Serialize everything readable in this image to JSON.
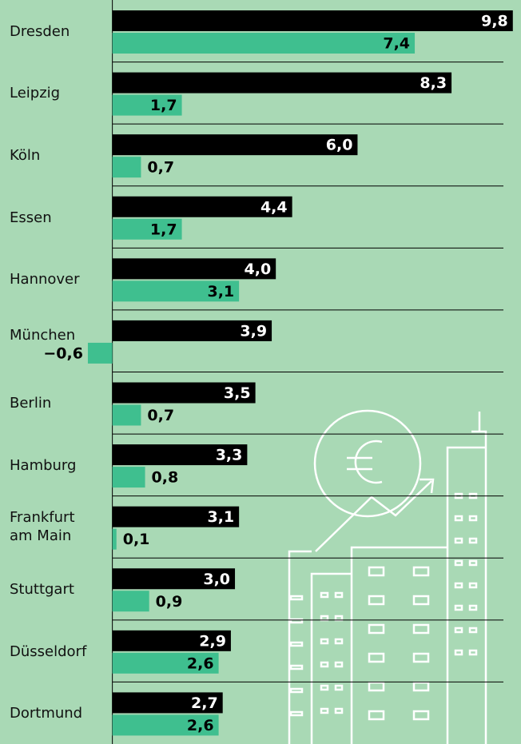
{
  "chart_data": {
    "type": "grouped-bar-horizontal",
    "categories": [
      "Dresden",
      "Leipzig",
      "Köln",
      "Essen",
      "Hannover",
      "München",
      "Berlin",
      "Hamburg",
      "Frankfurt am Main",
      "Stuttgart",
      "Düsseldorf",
      "Dortmund"
    ],
    "series": [
      {
        "color": "#000000",
        "values": [
          9.8,
          8.3,
          6.0,
          4.4,
          4.0,
          3.9,
          3.5,
          3.3,
          3.1,
          3.0,
          2.9,
          2.7
        ],
        "value_labels": [
          "9,8",
          "8,3",
          "6,0",
          "4,4",
          "4,0",
          "3,9",
          "3,5",
          "3,3",
          "3,1",
          "3,0",
          "2,9",
          "2,7"
        ]
      },
      {
        "color": "#3fbf8f",
        "values": [
          7.4,
          1.7,
          0.7,
          1.7,
          3.1,
          -0.6,
          0.7,
          0.8,
          0.1,
          0.9,
          2.6,
          2.6
        ],
        "value_labels": [
          "7,4",
          "1,7",
          "0,7",
          "1,7",
          "3,1",
          "−0,6",
          "0,7",
          "0,8",
          "0,1",
          "0,9",
          "2,6",
          "2,6"
        ]
      }
    ],
    "xlim": [
      -2.75,
      10
    ]
  }
}
